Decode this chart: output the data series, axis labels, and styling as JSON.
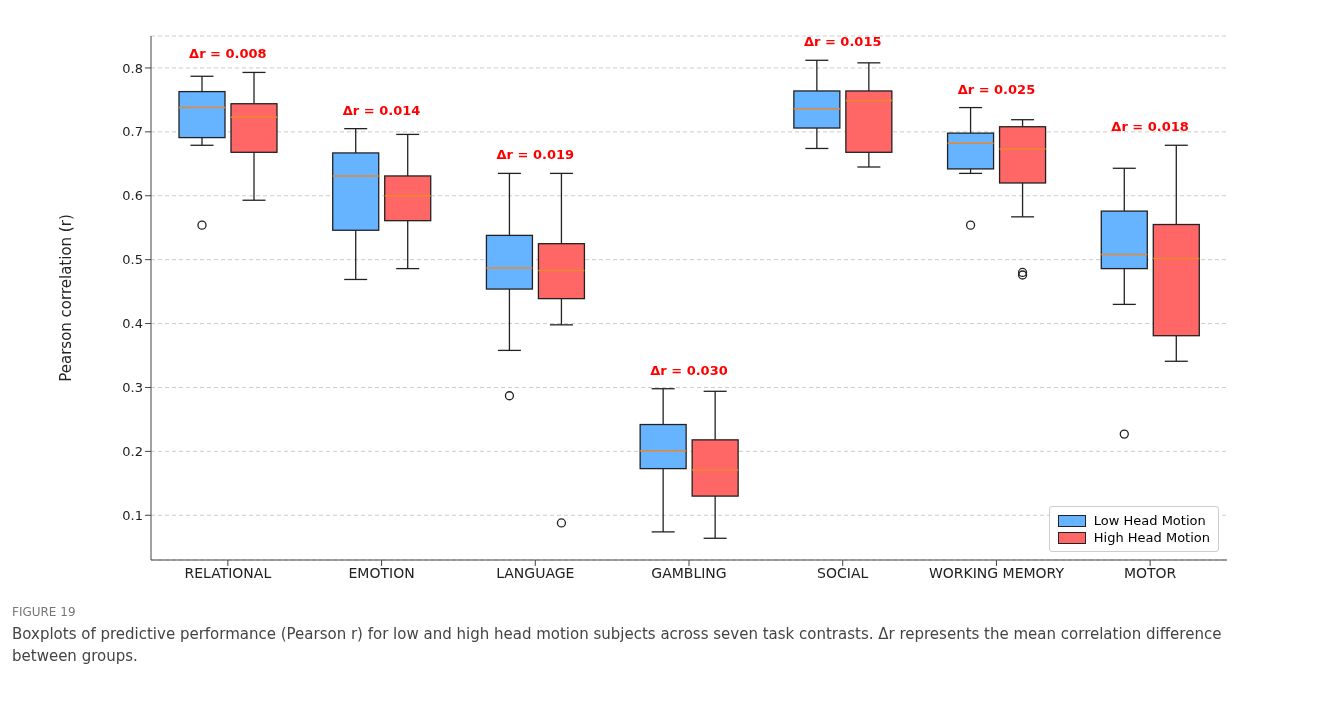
{
  "chart_data": {
    "type": "box",
    "ylabel": "Pearson correlation (r)",
    "categories": [
      "RELATIONAL",
      "EMOTION",
      "LANGUAGE",
      "GAMBLING",
      "SOCIAL",
      "WORKING MEMORY",
      "MOTOR"
    ],
    "ylim": [
      0.03,
      0.85
    ],
    "yticks": [
      0.1,
      0.2,
      0.3,
      0.4,
      0.5,
      0.6,
      0.7,
      0.8
    ],
    "grid": "y",
    "legend": "bottom right",
    "series": [
      {
        "name": "Low Head Motion",
        "color": "#66b3ff",
        "boxes": [
          {
            "low": 0.679,
            "q1": 0.691,
            "median": 0.738,
            "q3": 0.763,
            "high": 0.787,
            "outliers": [
              0.554
            ]
          },
          {
            "low": 0.469,
            "q1": 0.546,
            "median": 0.631,
            "q3": 0.667,
            "high": 0.705
          },
          {
            "low": 0.358,
            "q1": 0.454,
            "median": 0.487,
            "q3": 0.538,
            "high": 0.635,
            "outliers": [
              0.287
            ]
          },
          {
            "low": 0.074,
            "q1": 0.173,
            "median": 0.201,
            "q3": 0.242,
            "high": 0.298
          },
          {
            "low": 0.674,
            "q1": 0.706,
            "median": 0.736,
            "q3": 0.764,
            "high": 0.812
          },
          {
            "low": 0.635,
            "q1": 0.642,
            "median": 0.682,
            "q3": 0.698,
            "high": 0.738,
            "outliers": [
              0.554
            ]
          },
          {
            "low": 0.43,
            "q1": 0.486,
            "median": 0.508,
            "q3": 0.576,
            "high": 0.643,
            "outliers": [
              0.227
            ]
          }
        ]
      },
      {
        "name": "High Head Motion",
        "color": "#ff6666",
        "boxes": [
          {
            "low": 0.593,
            "q1": 0.668,
            "median": 0.723,
            "q3": 0.744,
            "high": 0.793
          },
          {
            "low": 0.486,
            "q1": 0.561,
            "median": 0.6,
            "q3": 0.631,
            "high": 0.696
          },
          {
            "low": 0.398,
            "q1": 0.439,
            "median": 0.483,
            "q3": 0.525,
            "high": 0.635,
            "outliers": [
              0.088
            ]
          },
          {
            "low": 0.064,
            "q1": 0.13,
            "median": 0.171,
            "q3": 0.218,
            "high": 0.294
          },
          {
            "low": 0.645,
            "q1": 0.668,
            "median": 0.749,
            "q3": 0.764,
            "high": 0.808
          },
          {
            "low": 0.567,
            "q1": 0.62,
            "median": 0.673,
            "q3": 0.708,
            "high": 0.719,
            "outliers": [
              0.476,
              0.48
            ]
          },
          {
            "low": 0.341,
            "q1": 0.381,
            "median": 0.502,
            "q3": 0.555,
            "high": 0.679
          }
        ]
      }
    ],
    "annotations": [
      "Δr = 0.008",
      "Δr = 0.014",
      "Δr = 0.019",
      "Δr = 0.030",
      "Δr = 0.015",
      "Δr = 0.025",
      "Δr = 0.018",
      "FIGURE 19",
      "Boxplots of predictive performance (Pearson r) for low and high head motion subjects across seven task contrasts. Δr represents the mean correlation difference between groups."
    ]
  }
}
